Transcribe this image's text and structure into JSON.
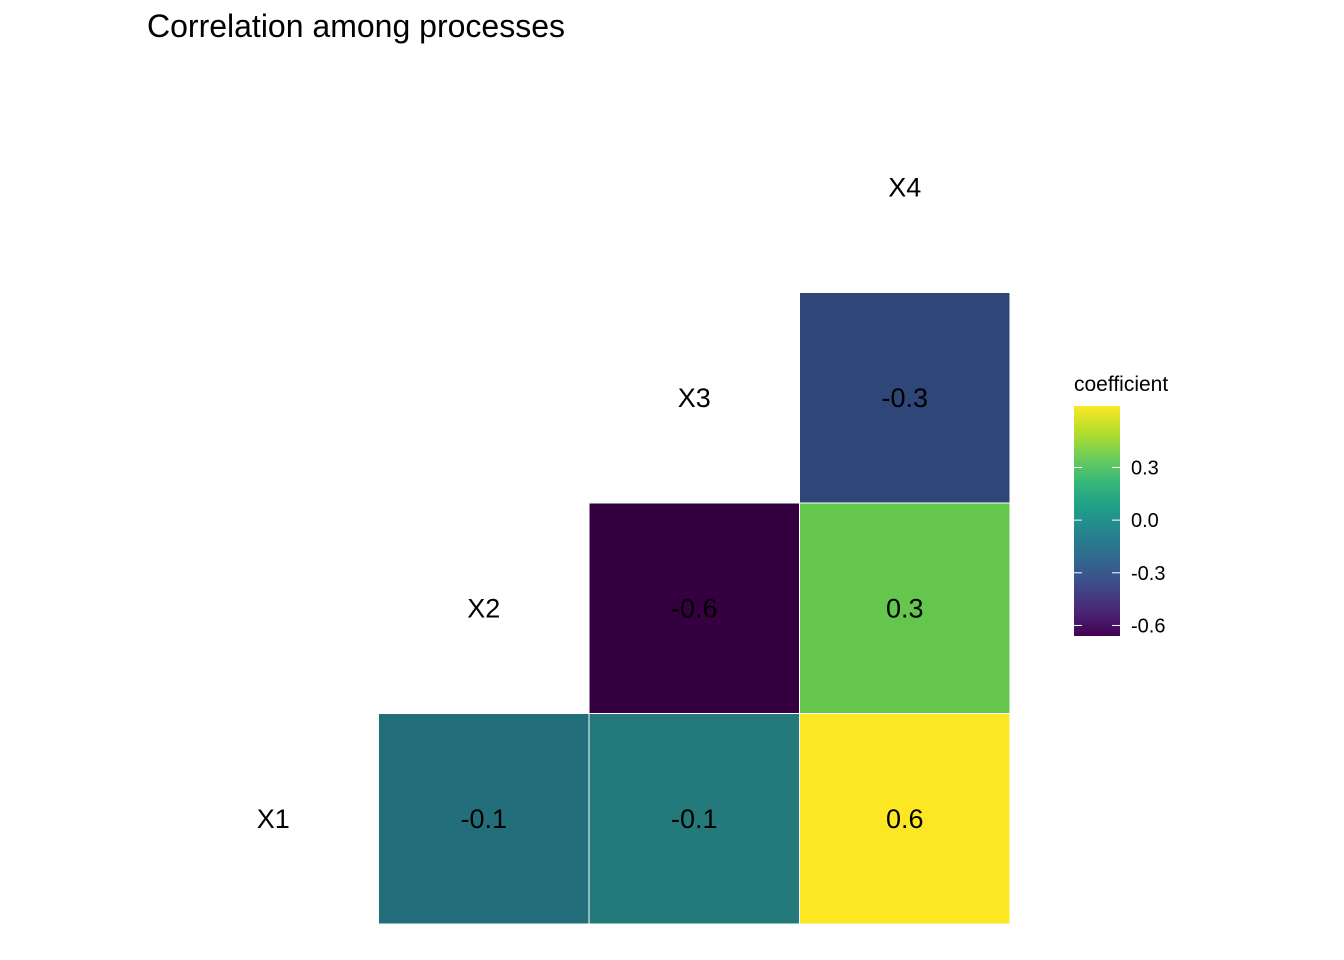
{
  "chart_data": {
    "type": "heatmap",
    "title": "Correlation among processes",
    "variables": [
      "X1",
      "X2",
      "X3",
      "X4"
    ],
    "cells": [
      {
        "row": "X1",
        "col": "X2",
        "value": -0.1,
        "label": "-0.1",
        "color": "#226E7A"
      },
      {
        "row": "X1",
        "col": "X3",
        "value": -0.1,
        "label": "-0.1",
        "color": "#24797A"
      },
      {
        "row": "X1",
        "col": "X4",
        "value": 0.6,
        "label": "0.6",
        "color": "#FDE725"
      },
      {
        "row": "X2",
        "col": "X3",
        "value": -0.6,
        "label": "-0.6",
        "color": "#350040"
      },
      {
        "row": "X2",
        "col": "X4",
        "value": 0.3,
        "label": "0.3",
        "color": "#64C64C"
      },
      {
        "row": "X3",
        "col": "X4",
        "value": -0.3,
        "label": "-0.3",
        "color": "#2F4678"
      }
    ],
    "legend": {
      "title": "coefficient",
      "position": "right",
      "range": [
        -0.66,
        0.65
      ],
      "ticks": [
        {
          "value": 0.3,
          "label": "0.3"
        },
        {
          "value": 0.0,
          "label": "0.0"
        },
        {
          "value": -0.3,
          "label": "-0.3"
        },
        {
          "value": -0.6,
          "label": "-0.6"
        }
      ],
      "colors": [
        "#FDE725",
        "#B5DE2B",
        "#6DCD59",
        "#35B779",
        "#1F9E89",
        "#26828E",
        "#31688E",
        "#3E4A89",
        "#482878",
        "#440154"
      ]
    },
    "grid": false
  }
}
